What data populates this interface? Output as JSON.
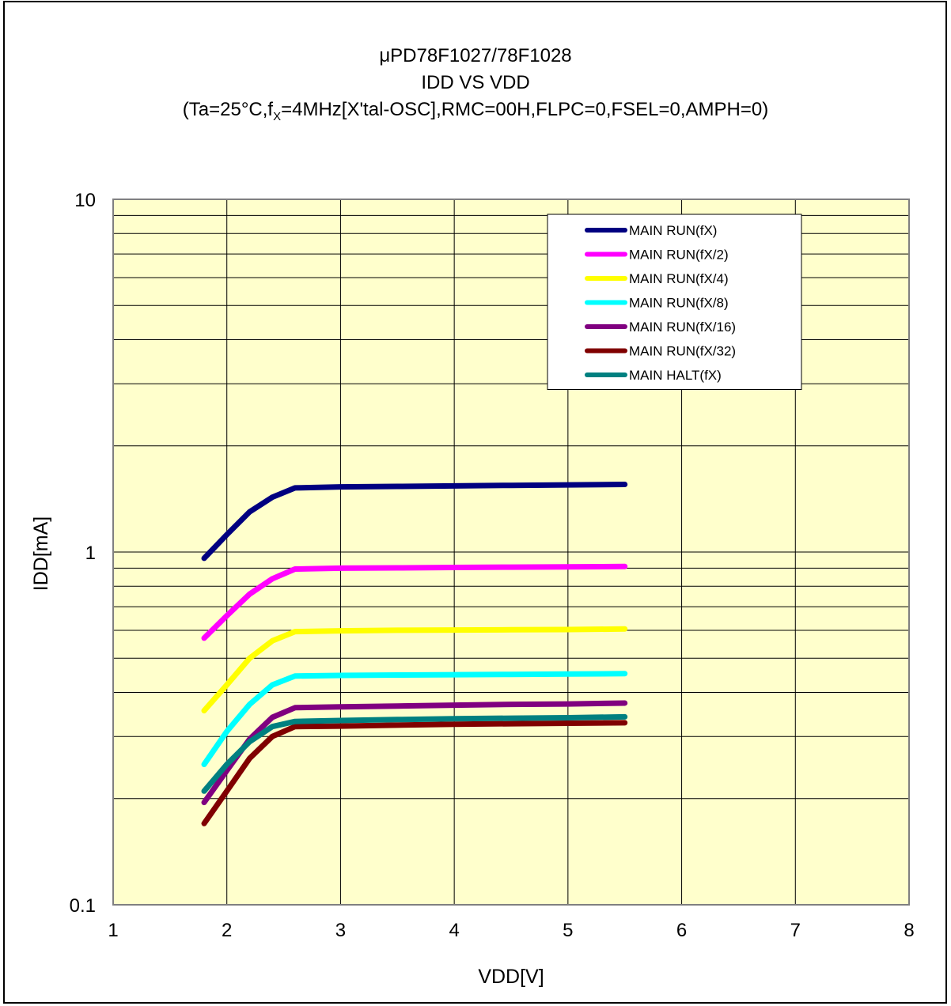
{
  "chart_data": {
    "type": "line",
    "title": "μPD78F1027/78F1028",
    "subtitle": "IDD VS VDD",
    "conditions": {
      "prefix": "(Ta=25°C,f",
      "subscript": "X",
      "suffix": "=4MHz[X'tal-OSC],RMC=00H,FLPC=0,FSEL=0,AMPH=0)"
    },
    "xlabel": "VDD[V]",
    "ylabel": "IDD[mA]",
    "xlim": [
      1,
      8
    ],
    "ylim": [
      0.1,
      10
    ],
    "yscale": "log",
    "grid": true,
    "legend_position": "top-right",
    "x_ticks": [
      1,
      2,
      3,
      4,
      5,
      6,
      7,
      8
    ],
    "x_tick_labels": [
      "1",
      "2",
      "3",
      "4",
      "5",
      "6",
      "7",
      "8"
    ],
    "y_ticks": [
      0.1,
      1,
      10
    ],
    "y_tick_labels": [
      "0.1",
      "1",
      "10"
    ],
    "plot_background": "#ffffcc",
    "x": [
      1.8,
      2.0,
      2.2,
      2.4,
      2.6,
      3.0,
      3.5,
      4.0,
      4.5,
      5.0,
      5.5
    ],
    "series": [
      {
        "name": "MAIN RUN(fX)",
        "color": "#000080",
        "values": [
          0.96,
          1.12,
          1.3,
          1.43,
          1.52,
          1.53,
          1.535,
          1.54,
          1.545,
          1.55,
          1.555
        ]
      },
      {
        "name": "MAIN RUN(fX/2)",
        "color": "#ff00ff",
        "values": [
          0.57,
          0.66,
          0.76,
          0.84,
          0.895,
          0.9,
          0.902,
          0.904,
          0.906,
          0.908,
          0.91
        ]
      },
      {
        "name": "MAIN RUN(fX/4)",
        "color": "#ffff00",
        "values": [
          0.355,
          0.42,
          0.5,
          0.56,
          0.595,
          0.598,
          0.6,
          0.601,
          0.602,
          0.603,
          0.605
        ]
      },
      {
        "name": "MAIN RUN(fX/8)",
        "color": "#00ffff",
        "values": [
          0.25,
          0.31,
          0.37,
          0.42,
          0.445,
          0.447,
          0.448,
          0.449,
          0.45,
          0.451,
          0.452
        ]
      },
      {
        "name": "MAIN RUN(fX/16)",
        "color": "#800080",
        "values": [
          0.195,
          0.24,
          0.295,
          0.34,
          0.362,
          0.364,
          0.366,
          0.368,
          0.37,
          0.371,
          0.373
        ]
      },
      {
        "name": "MAIN RUN(fX/32)",
        "color": "#800000",
        "values": [
          0.17,
          0.21,
          0.26,
          0.3,
          0.32,
          0.321,
          0.323,
          0.325,
          0.326,
          0.327,
          0.328
        ]
      },
      {
        "name": "MAIN HALT(fX)",
        "color": "#008080",
        "values": [
          0.21,
          0.25,
          0.29,
          0.32,
          0.331,
          0.333,
          0.335,
          0.337,
          0.338,
          0.339,
          0.341
        ]
      }
    ]
  }
}
